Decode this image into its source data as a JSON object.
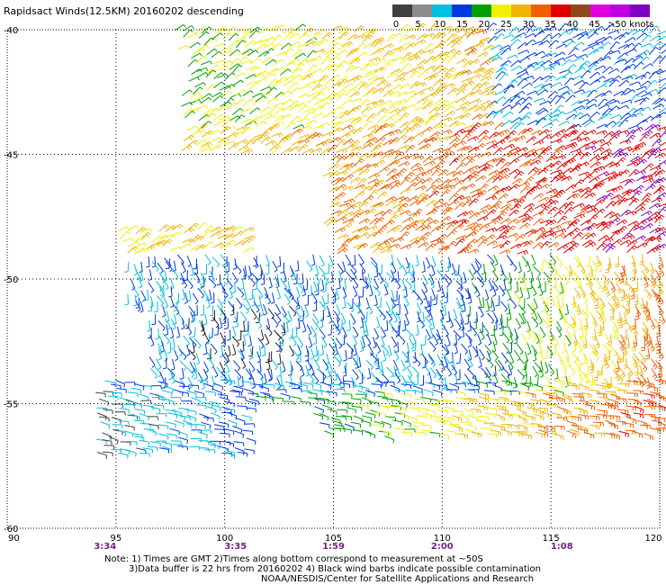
{
  "title": "Rapidsact Winds(12.5KM) 20160202 descending",
  "colorbar": {
    "labels": [
      "0",
      "5",
      "10",
      "15",
      "20",
      "25",
      "30",
      "35",
      "40",
      "45",
      ">50 knots"
    ],
    "colors": [
      "#404040",
      "#8c8c8c",
      "#00c0e0",
      "#0038e0",
      "#00a000",
      "#f0f000",
      "#f0b400",
      "#f06000",
      "#e00000",
      "#8c4a1c",
      "#e000e0",
      "#c000e0",
      "#8000c0"
    ]
  },
  "map": {
    "lon_labels": [
      "90",
      "95",
      "100",
      "105",
      "110",
      "115",
      "120"
    ],
    "lat_labels": [
      "-40",
      "-45",
      "-50",
      "-55",
      "-60"
    ],
    "time_labels": [
      "3:34",
      "3:35",
      "1:59",
      "2:00",
      "1:08"
    ]
  },
  "notes": {
    "line1": "Note: 1) Times are GMT 2)Times along bottom correspond to measurement at ~50S",
    "line2": "3)Data buffer is 22 hrs from 20160202 4) Black wind barbs indicate possible contamination",
    "line3": "NOAA/NESDIS/Center for Satellite Applications and Research"
  }
}
